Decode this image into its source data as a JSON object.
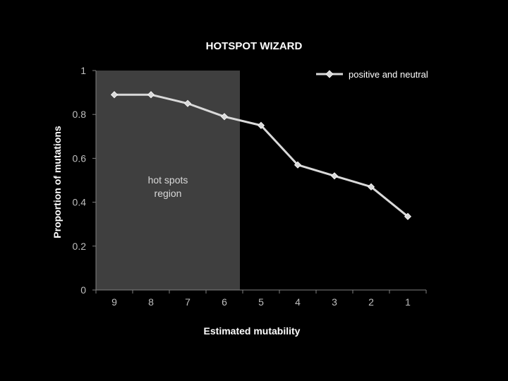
{
  "chart_data": {
    "type": "line",
    "title": "HOTSPOT WIZARD",
    "xlabel": "Estimated mutability",
    "ylabel": "Proportion of mutations",
    "categories": [
      "9",
      "8",
      "7",
      "6",
      "5",
      "4",
      "3",
      "2",
      "1"
    ],
    "y_ticks": [
      "0",
      "0.2",
      "0.4",
      "0.6",
      "0.8",
      "1"
    ],
    "ylim": [
      0,
      1
    ],
    "series": [
      {
        "name": "positive and neutral",
        "values": [
          0.89,
          0.89,
          0.85,
          0.79,
          0.75,
          0.57,
          0.52,
          0.47,
          0.335
        ]
      }
    ],
    "shaded_region": {
      "label_line1": "hot spots",
      "label_line2": "region",
      "categories": [
        "9",
        "6"
      ]
    },
    "legend_position": "top-right",
    "grid": false,
    "colors": {
      "background": "#000000",
      "region": "#3f3f3f",
      "series": "#d9d9d9",
      "axis": "#808080"
    }
  }
}
